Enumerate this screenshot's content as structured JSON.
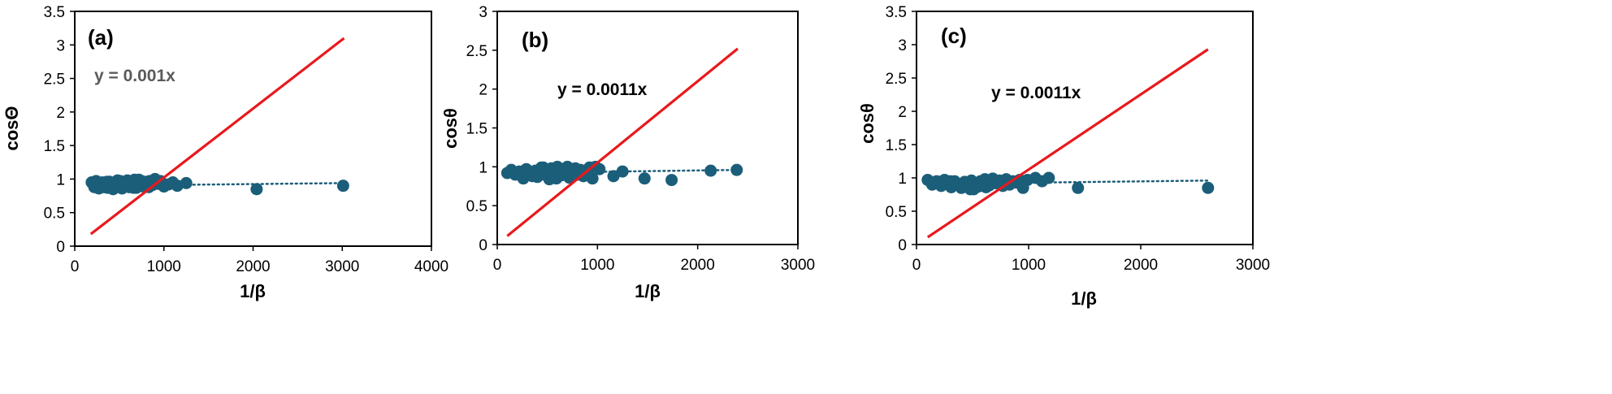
{
  "colors": {
    "marker": "#1b5e7a",
    "fit_line": "#1b5e7a",
    "model_line": "#e8191c",
    "axis": "#000000",
    "equation_a": "#5a5a5a",
    "equation_bc": "#000000"
  },
  "chart_data": [
    {
      "type": "scatter",
      "panel_label": "(a)",
      "xlabel": "1/β",
      "ylabel": "cosΘ",
      "xlim": [
        0,
        4000
      ],
      "ylim": [
        0,
        3.5
      ],
      "xticks": [
        "0",
        "1000",
        "2000",
        "3000",
        "4000"
      ],
      "yticks": [
        "0",
        "0.5",
        "1",
        "1.5",
        "2",
        "2.5",
        "3",
        "3.5"
      ],
      "grid": false,
      "equation": "y = 0.001x",
      "fit_line": {
        "x": [
          180,
          3020
        ],
        "y": [
          0.9,
          0.94
        ]
      },
      "model_line": {
        "x": [
          180,
          3020
        ],
        "y": [
          0.18,
          3.1
        ]
      },
      "points": {
        "x": [
          190,
          220,
          250,
          270,
          290,
          310,
          330,
          350,
          370,
          390,
          410,
          430,
          450,
          470,
          490,
          510,
          530,
          550,
          570,
          590,
          610,
          630,
          650,
          670,
          690,
          710,
          730,
          750,
          770,
          790,
          810,
          830,
          850,
          870,
          900,
          930,
          960,
          1000,
          1050,
          1100,
          1150,
          1250,
          2040,
          3010,
          240,
          300,
          360,
          420,
          480,
          540,
          600,
          660,
          720,
          780,
          840
        ],
        "y": [
          0.95,
          0.88,
          0.92,
          0.86,
          0.9,
          0.95,
          0.88,
          0.93,
          0.87,
          0.96,
          0.91,
          0.85,
          0.94,
          0.89,
          0.92,
          0.97,
          0.86,
          0.93,
          0.9,
          0.98,
          0.88,
          0.95,
          0.91,
          0.99,
          0.87,
          0.94,
          0.9,
          0.97,
          0.89,
          0.93,
          0.96,
          0.88,
          0.95,
          0.91,
          1.0,
          0.93,
          0.97,
          0.89,
          0.92,
          0.95,
          0.9,
          0.94,
          0.85,
          0.9,
          0.97,
          0.92,
          0.96,
          0.88,
          0.98,
          0.91,
          0.96,
          0.87,
          0.99,
          0.92,
          0.97
        ]
      }
    },
    {
      "type": "scatter",
      "panel_label": "(b)",
      "xlabel": "1/β",
      "ylabel": "cosθ",
      "xlim": [
        0,
        3000
      ],
      "ylim": [
        0,
        3
      ],
      "xticks": [
        "0",
        "1000",
        "2000",
        "3000"
      ],
      "yticks": [
        "0",
        "0.5",
        "1",
        "1.5",
        "2",
        "2.5",
        "3"
      ],
      "grid": false,
      "equation": "y = 0.0011x",
      "fit_line": {
        "x": [
          100,
          2400
        ],
        "y": [
          0.92,
          0.96
        ]
      },
      "model_line": {
        "x": [
          100,
          2400
        ],
        "y": [
          0.11,
          2.52
        ]
      },
      "points": {
        "x": [
          100,
          140,
          180,
          220,
          260,
          290,
          320,
          350,
          380,
          410,
          440,
          470,
          500,
          520,
          540,
          560,
          580,
          600,
          620,
          640,
          660,
          680,
          700,
          720,
          740,
          760,
          780,
          800,
          830,
          860,
          890,
          920,
          950,
          980,
          1020,
          1160,
          1250,
          1470,
          1740,
          2130,
          2390,
          400,
          460,
          530,
          590,
          650,
          710
        ],
        "y": [
          0.92,
          0.96,
          0.9,
          0.94,
          0.85,
          0.97,
          0.91,
          0.88,
          0.95,
          0.93,
          0.99,
          0.9,
          0.96,
          0.84,
          0.98,
          0.92,
          0.87,
          1.0,
          0.94,
          0.89,
          0.97,
          0.91,
          1.0,
          0.86,
          0.95,
          0.93,
          0.98,
          0.9,
          0.96,
          0.88,
          0.94,
          0.99,
          0.85,
          1.0,
          0.97,
          0.88,
          0.94,
          0.85,
          0.83,
          0.95,
          0.96,
          0.87,
          0.99,
          0.92,
          0.85,
          0.96,
          0.9
        ]
      }
    },
    {
      "type": "scatter",
      "panel_label": "(c)",
      "xlabel": "1/β",
      "ylabel": "cosθ",
      "xlim": [
        0,
        3000
      ],
      "ylim": [
        0,
        3.5
      ],
      "xticks": [
        "0",
        "1000",
        "2000",
        "3000"
      ],
      "yticks": [
        "0",
        "0.5",
        "1",
        "1.5",
        "2",
        "2.5",
        "3",
        "3.5"
      ],
      "grid": false,
      "equation": "y = 0.0011x",
      "fit_line": {
        "x": [
          100,
          2600
        ],
        "y": [
          0.91,
          0.96
        ]
      },
      "model_line": {
        "x": [
          100,
          2600
        ],
        "y": [
          0.11,
          2.93
        ]
      },
      "points": {
        "x": [
          100,
          140,
          180,
          220,
          250,
          280,
          310,
          340,
          370,
          400,
          430,
          460,
          490,
          510,
          530,
          550,
          570,
          590,
          610,
          630,
          650,
          680,
          710,
          740,
          770,
          800,
          830,
          860,
          890,
          920,
          950,
          990,
          1060,
          1120,
          1180,
          1440,
          2600,
          210,
          300,
          420,
          480,
          560,
          620,
          700
        ],
        "y": [
          0.97,
          0.9,
          0.95,
          0.88,
          0.97,
          0.92,
          0.86,
          0.95,
          0.91,
          0.85,
          0.94,
          0.88,
          0.96,
          0.83,
          0.92,
          0.87,
          0.95,
          0.9,
          0.98,
          0.93,
          0.89,
          0.99,
          0.92,
          0.96,
          0.88,
          0.98,
          0.9,
          0.95,
          0.93,
          0.97,
          0.85,
          0.97,
          1.0,
          0.95,
          1.0,
          0.85,
          0.85,
          0.9,
          0.95,
          0.88,
          0.83,
          0.9,
          0.86,
          0.93
        ]
      }
    }
  ]
}
